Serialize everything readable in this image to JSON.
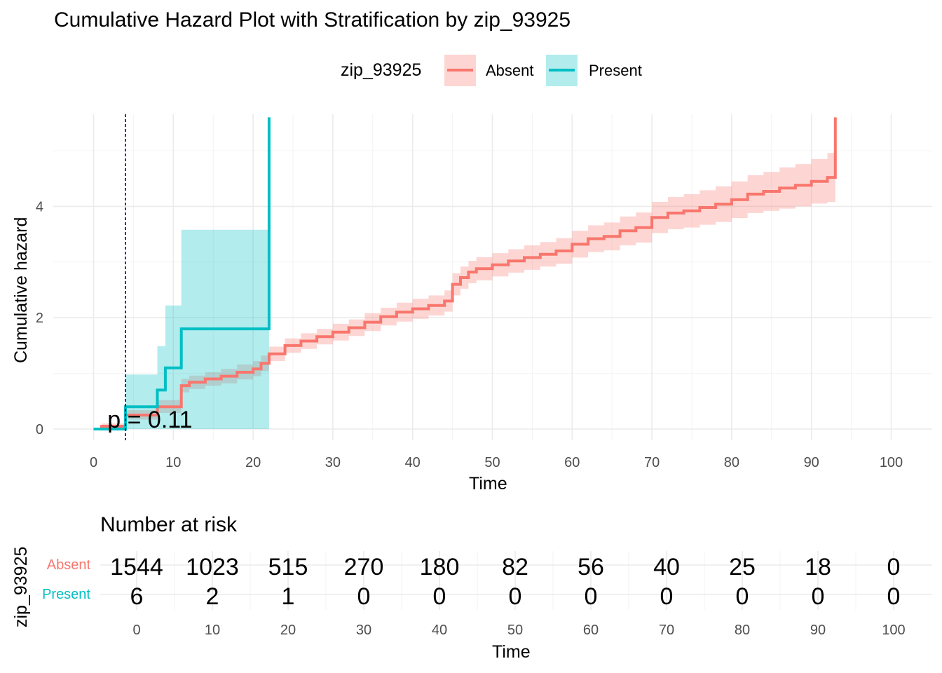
{
  "title": "Cumulative Hazard Plot with Stratification by zip_93925",
  "legend": {
    "title": "zip_93925",
    "entries": [
      {
        "label": "Absent",
        "color": "#F8766D",
        "band_color": "#F8766D"
      },
      {
        "label": "Present",
        "color": "#00BFC4",
        "band_color": "#00BFC4"
      }
    ]
  },
  "chart_data": [
    {
      "type": "line",
      "subtype": "step",
      "title": "Cumulative Hazard Plot with Stratification by zip_93925",
      "xlabel": "Time",
      "ylabel": "Cumulative hazard",
      "xlim": [
        -5,
        105
      ],
      "ylim": [
        -0.2,
        5.6
      ],
      "x_ticks": [
        0,
        10,
        20,
        30,
        40,
        50,
        60,
        70,
        80,
        90,
        100
      ],
      "y_ticks": [
        0,
        2,
        4
      ],
      "grid": true,
      "legend_position": "top",
      "vline": {
        "x": 4,
        "color": "#00008B",
        "style": "dashed"
      },
      "annotation": {
        "text": "p = 0.11",
        "x": 2,
        "y": 0.15
      },
      "series": [
        {
          "name": "Absent",
          "color": "#F8766D",
          "x": [
            0,
            1,
            4,
            8,
            11,
            12,
            14,
            16,
            18,
            20,
            21,
            22,
            24,
            26,
            28,
            30,
            32,
            34,
            36,
            38,
            40,
            42,
            44,
            45,
            46,
            47,
            48,
            50,
            52,
            54,
            56,
            58,
            60,
            62,
            64,
            66,
            68,
            70,
            72,
            74,
            76,
            78,
            80,
            82,
            84,
            86,
            88,
            90,
            92,
            93
          ],
          "y": [
            0,
            0.05,
            0.25,
            0.4,
            0.78,
            0.84,
            0.9,
            0.95,
            1.02,
            1.08,
            1.18,
            1.35,
            1.5,
            1.58,
            1.66,
            1.74,
            1.82,
            1.92,
            2.02,
            2.1,
            2.16,
            2.22,
            2.3,
            2.6,
            2.72,
            2.82,
            2.88,
            2.95,
            3.02,
            3.08,
            3.14,
            3.2,
            3.32,
            3.42,
            3.46,
            3.56,
            3.62,
            3.8,
            3.88,
            3.92,
            3.98,
            4.04,
            4.12,
            4.22,
            4.27,
            4.33,
            4.38,
            4.45,
            4.52,
            5.6
          ],
          "ci_lower": [
            0,
            0.02,
            0.17,
            0.29,
            0.66,
            0.72,
            0.78,
            0.82,
            0.89,
            0.95,
            1.04,
            1.22,
            1.37,
            1.44,
            1.52,
            1.59,
            1.67,
            1.76,
            1.86,
            1.93,
            1.98,
            2.04,
            2.11,
            2.4,
            2.52,
            2.62,
            2.67,
            2.74,
            2.81,
            2.86,
            2.92,
            2.97,
            3.08,
            3.18,
            3.21,
            3.3,
            3.35,
            3.52,
            3.59,
            3.62,
            3.67,
            3.72,
            3.79,
            3.88,
            3.92,
            3.96,
            4.0,
            4.05,
            4.08,
            4.08
          ],
          "ci_upper": [
            0,
            0.1,
            0.34,
            0.52,
            0.9,
            0.96,
            1.02,
            1.08,
            1.16,
            1.22,
            1.32,
            1.48,
            1.63,
            1.72,
            1.8,
            1.89,
            1.97,
            2.08,
            2.18,
            2.27,
            2.34,
            2.4,
            2.49,
            2.8,
            2.92,
            3.02,
            3.09,
            3.16,
            3.23,
            3.3,
            3.36,
            3.43,
            3.56,
            3.66,
            3.71,
            3.82,
            3.89,
            4.08,
            4.17,
            4.22,
            4.29,
            4.36,
            4.45,
            4.56,
            4.62,
            4.7,
            4.76,
            4.85,
            4.96,
            4.96
          ]
        },
        {
          "name": "Present",
          "color": "#00BFC4",
          "x": [
            0,
            4,
            8,
            9,
            11,
            22
          ],
          "y": [
            0,
            0.4,
            0.7,
            1.1,
            1.8,
            5.6
          ],
          "ci_lower": [
            0,
            0,
            0,
            0,
            0,
            0
          ],
          "ci_upper": [
            0,
            0.98,
            1.49,
            2.22,
            3.58,
            3.58
          ]
        }
      ]
    },
    {
      "type": "table",
      "title": "Number at risk",
      "xlabel": "Time",
      "ylabel": "zip_93925",
      "times": [
        0,
        10,
        20,
        30,
        40,
        50,
        60,
        70,
        80,
        90,
        100
      ],
      "rows": [
        {
          "name": "Absent",
          "color": "#F8766D",
          "values": [
            1544,
            1023,
            515,
            270,
            180,
            82,
            56,
            40,
            25,
            18,
            0
          ]
        },
        {
          "name": "Present",
          "color": "#00BFC4",
          "values": [
            6,
            2,
            1,
            0,
            0,
            0,
            0,
            0,
            0,
            0,
            0
          ]
        }
      ]
    }
  ]
}
